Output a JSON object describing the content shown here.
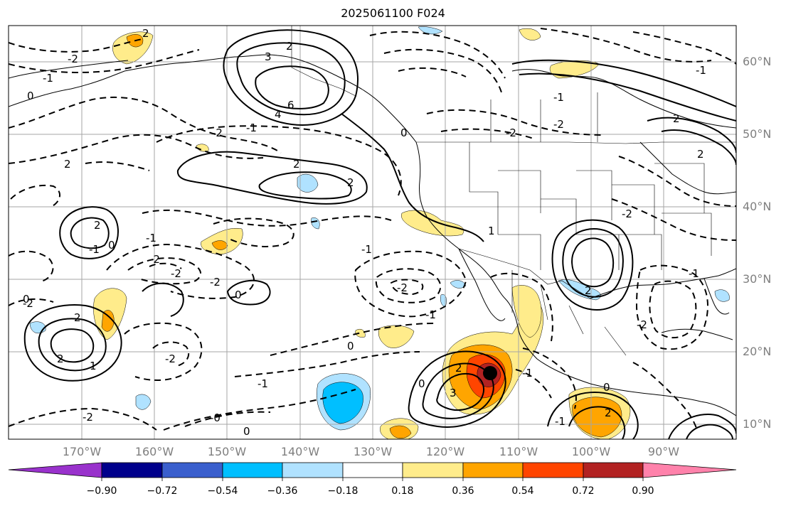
{
  "title": "2025061100 F024",
  "map": {
    "lon_ticks": [
      "170°W",
      "160°W",
      "150°W",
      "140°W",
      "130°W",
      "120°W",
      "110°W",
      "100°W",
      "90°W"
    ],
    "lat_ticks": [
      "60°N",
      "50°N",
      "40°N",
      "30°N",
      "20°N",
      "10°N"
    ],
    "contour_labels": [
      "2",
      "-2",
      "-1",
      "0",
      "3",
      "6",
      "4",
      "2",
      "-2",
      "2",
      "2",
      "-1",
      "0",
      "2",
      "-2",
      "-1",
      "2",
      "2",
      "-2",
      "1",
      "-2",
      "2",
      "0",
      "-1",
      "-2",
      "-2",
      "0",
      "-1",
      "-2",
      "2",
      "0",
      "1",
      "2",
      "-2",
      "-1",
      "2",
      "0",
      "3",
      "-1",
      "-2",
      "0",
      "-1",
      "-1",
      "2",
      "0",
      "-1",
      "-2",
      "-1",
      "-2",
      "-0",
      "0",
      "-2",
      "-1",
      "2"
    ],
    "storm_marker": "tropical-cyclone-center"
  },
  "colorbar": {
    "colors": [
      "#9932cc",
      "#00008b",
      "#3a5fcd",
      "#00bfff",
      "#b0e2ff",
      "#ffffff",
      "#ffec8b",
      "#ffa500",
      "#ff4500",
      "#b22222",
      "#ff82ab"
    ],
    "tick_labels": [
      "−0.90",
      "−0.72",
      "−0.54",
      "−0.36",
      "−0.18",
      "0.18",
      "0.36",
      "0.54",
      "0.72",
      "0.90"
    ]
  }
}
